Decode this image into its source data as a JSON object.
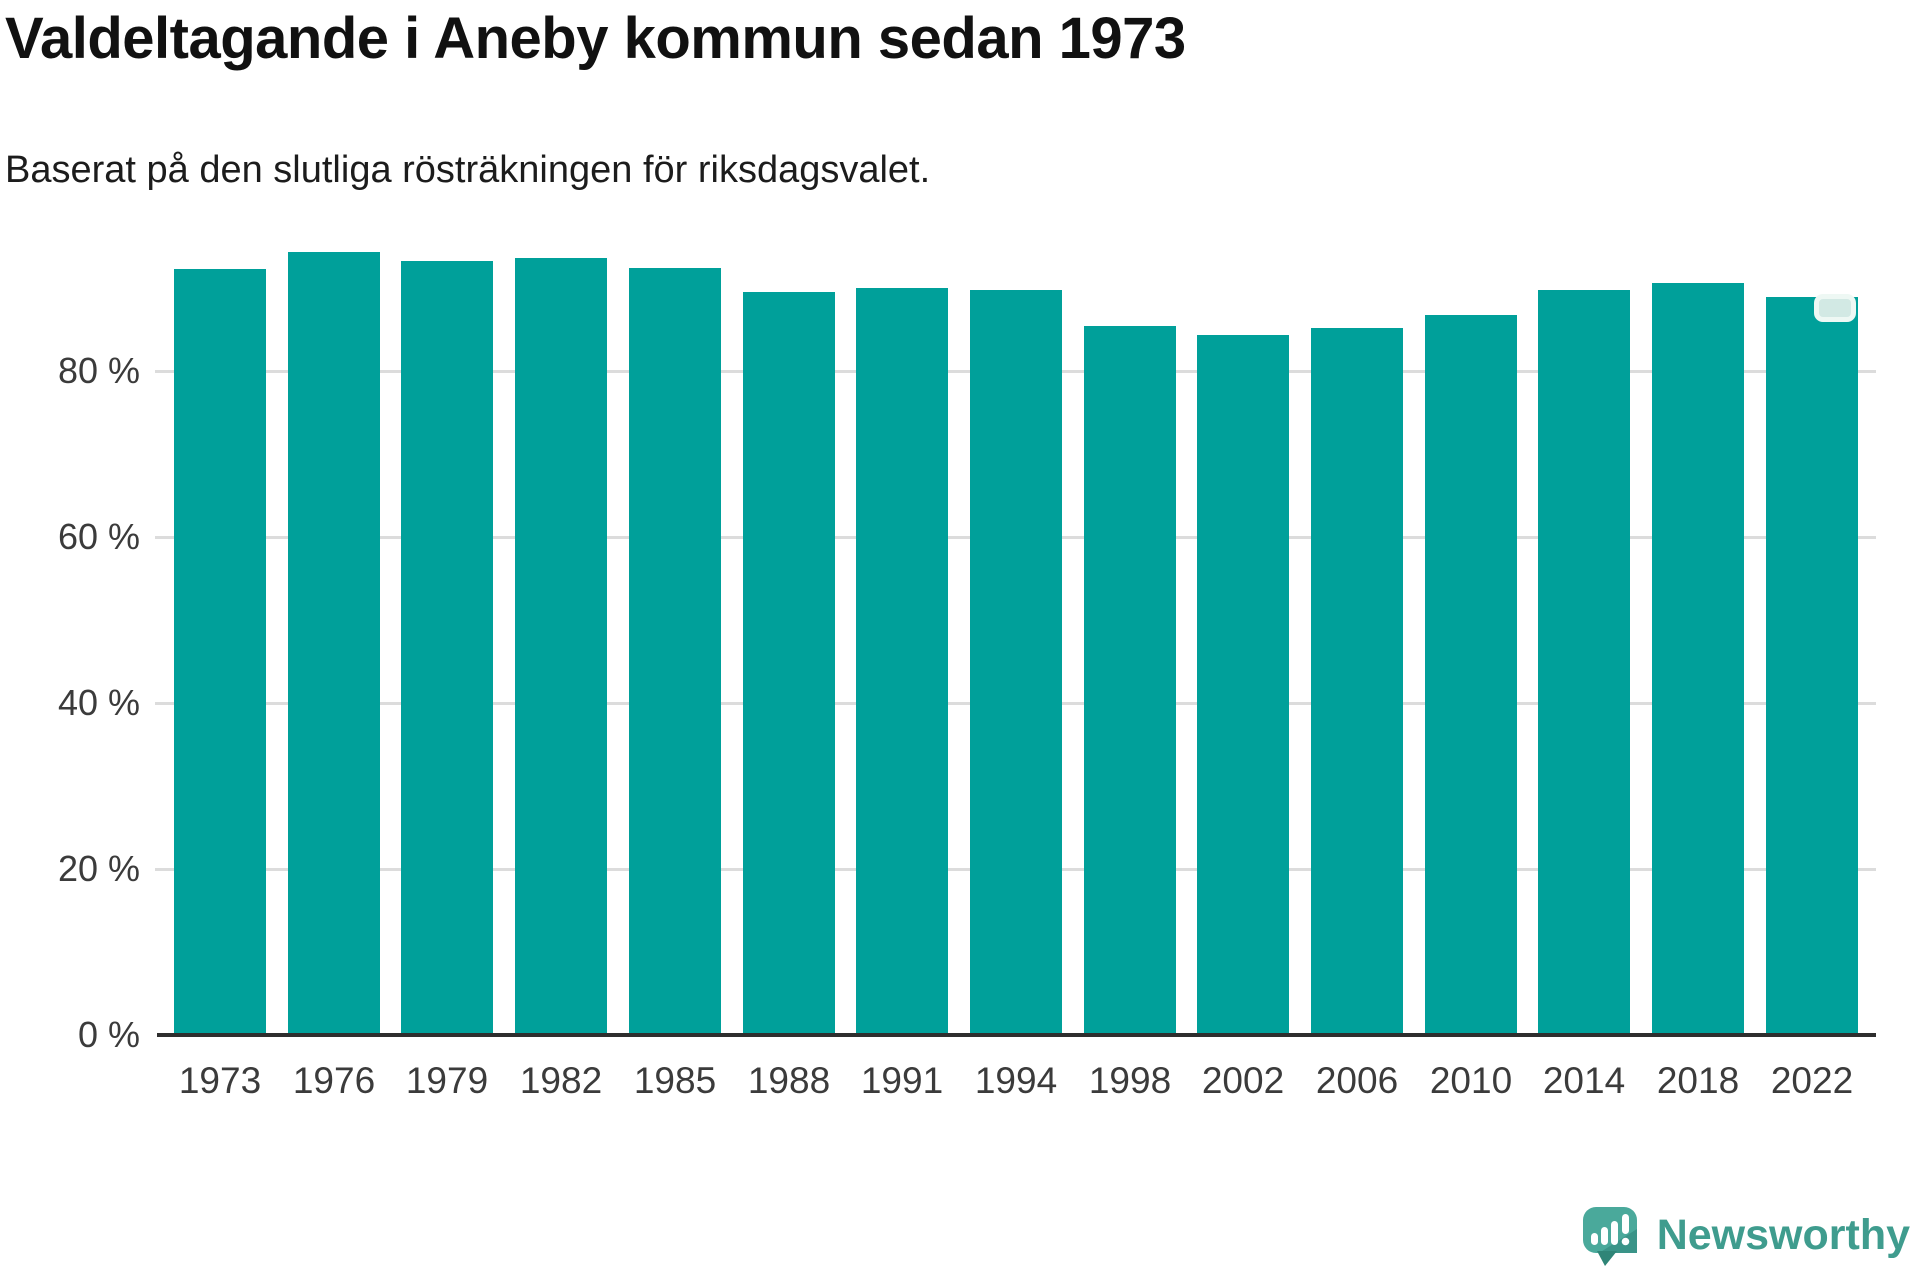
{
  "header": {
    "title": "Valdeltagande i Aneby kommun sedan 1973",
    "subtitle": "Baserat på den slutliga rösträkningen för riksdagsvalet."
  },
  "chart_data": {
    "type": "bar",
    "title": "Valdeltagande i Aneby kommun sedan 1973",
    "subtitle": "Baserat på den slutliga rösträkningen för riksdagsvalet.",
    "categories": [
      "1973",
      "1976",
      "1979",
      "1982",
      "1985",
      "1988",
      "1991",
      "1994",
      "1998",
      "2002",
      "2006",
      "2010",
      "2014",
      "2018",
      "2022"
    ],
    "values": [
      92.3,
      94.3,
      93.3,
      93.6,
      92.4,
      89.5,
      90.0,
      89.8,
      85.4,
      84.3,
      85.2,
      86.7,
      89.8,
      90.6,
      88.9
    ],
    "unit": "%",
    "xlabel": "",
    "ylabel": "",
    "ylim": [
      0,
      100
    ],
    "yticks": [
      0,
      20,
      40,
      60,
      80
    ],
    "ytick_labels": [
      "0 %",
      "20 %",
      "40 %",
      "60 %",
      "80 %"
    ],
    "grid": "horizontal",
    "legend_position": "none",
    "bar_color": "#00a09a",
    "annotation": {
      "type": "latest-value-handle",
      "on_category": "2022"
    }
  },
  "branding": {
    "logo_text": "Newsworthy",
    "logo_text_color": "#3f9c8e",
    "logo_icon_color": "#4aa99b",
    "logo_icon_shadow_color": "#2f8577"
  },
  "colors": {
    "bar": "#00a09a",
    "grid": "#dcdcdc",
    "axis": "#2e2e2e",
    "tick_text": "#3b3b3b",
    "title_text": "#111111"
  }
}
